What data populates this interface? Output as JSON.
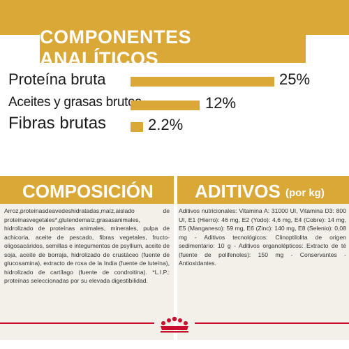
{
  "analytical_components": {
    "title": "COMPONENTES ANALÍTICOS",
    "rows": [
      {
        "label": "Proteína bruta",
        "value": "25%",
        "percent": 25
      },
      {
        "label": "Aceites y grasas brutos",
        "value": "12%",
        "percent": 12
      },
      {
        "label": "Fibras brutas",
        "value": "2.2%",
        "percent": 2.2
      }
    ]
  },
  "composition": {
    "title": "COMPOSICIÓN",
    "text": "Arroz,proteínasdeavedeshidratadas,maíz,aislado de proteínasvegetales*,glutendemaíz,grasasanimales, hidrolizado de proteínas animales, minerales, pulpa de achicoria, aceite de pescado, fibras vegetales, fructo-oligosacáridos, semillas e integumentos de psyllium, aceite de soja, aceite de borraja, hidrolizado de crustáceo (fuente de glucosamina), extracto de rosa de la India (fuente de luteína), hidrolizado de cartílago (fuente de condroitina). *L.I.P.: proteínas seleccionadas por su elevada digestibilidad."
  },
  "additives": {
    "title": "ADITIVOS",
    "subtitle": "(por kg)",
    "text": "Aditivos nutricionales: Vitamina A: 31000 UI, Vitamina D3: 800 UI, E1 (Hierro): 46 mg, E2 (Yodo): 4,6 mg, E4 (Cobre): 14 mg, E5 (Manganeso): 59 mg, E6 (Zinc): 140 mg, E8 (Selenio): 0,08 mg - Aditivos tecnológicos: Clinoptilolita de origen sedimentario: 10 g - Aditivos organolépticos: Extracto de té (fuente de polifenoles): 150 mg - Conservantes - Antioxidantes."
  },
  "colors": {
    "gold": "#d9a837",
    "panel": "#f3f0ea",
    "brand_red": "#c8102e"
  }
}
